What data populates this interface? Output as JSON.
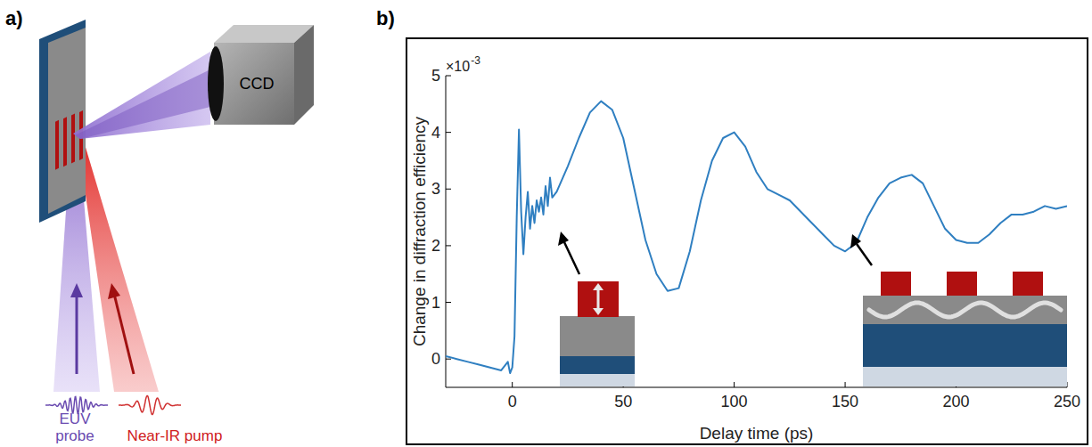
{
  "diagram": {
    "panel_label": "a)",
    "ccd": "CCD",
    "probe": [
      "EUV",
      "probe"
    ],
    "pump": "Near-IR pump"
  },
  "chart_data": {
    "type": "line",
    "panel_label": "b)",
    "x_label": "Delay time (ps)",
    "y_label": "Change in diffraction efficiency",
    "annotations": [
      {
        "text": "×10",
        "superscript": "-3"
      }
    ],
    "x": [
      -30,
      -25,
      -20,
      -15,
      -10,
      -5,
      -2,
      -1,
      0,
      1,
      2,
      3,
      4,
      5,
      6,
      7,
      8,
      9,
      10,
      11,
      12,
      13,
      14,
      15,
      16,
      17,
      18,
      20,
      25,
      30,
      35,
      40,
      45,
      50,
      55,
      60,
      65,
      70,
      75,
      80,
      85,
      90,
      95,
      100,
      105,
      110,
      115,
      120,
      125,
      130,
      135,
      140,
      145,
      150,
      155,
      160,
      165,
      170,
      175,
      180,
      185,
      190,
      195,
      200,
      205,
      210,
      215,
      220,
      225,
      230,
      235,
      240,
      245,
      250
    ],
    "values": [
      0.05,
      0.0,
      -0.05,
      -0.1,
      -0.15,
      -0.2,
      -0.05,
      -0.25,
      -0.15,
      0.4,
      2.5,
      4.05,
      2.6,
      1.85,
      2.5,
      2.95,
      2.3,
      2.7,
      2.4,
      2.8,
      2.6,
      2.85,
      2.55,
      3.05,
      2.7,
      3.2,
      2.85,
      2.95,
      3.4,
      3.9,
      4.35,
      4.55,
      4.4,
      3.9,
      3.0,
      2.1,
      1.5,
      1.2,
      1.25,
      1.9,
      2.8,
      3.5,
      3.9,
      4.0,
      3.75,
      3.3,
      3.0,
      2.9,
      2.8,
      2.6,
      2.4,
      2.2,
      2.0,
      1.9,
      2.05,
      2.5,
      2.85,
      3.1,
      3.2,
      3.25,
      3.1,
      2.7,
      2.3,
      2.1,
      2.05,
      2.05,
      2.2,
      2.4,
      2.55,
      2.55,
      2.6,
      2.7,
      2.65,
      2.7
    ],
    "color": "#2f7fc1",
    "xlim": [
      -30,
      250
    ],
    "xticks": [
      0,
      50,
      100,
      150,
      200,
      250
    ],
    "ylim": [
      -0.5,
      5
    ],
    "yticks": [
      0,
      1,
      2,
      3,
      4,
      5
    ],
    "grid": false
  }
}
